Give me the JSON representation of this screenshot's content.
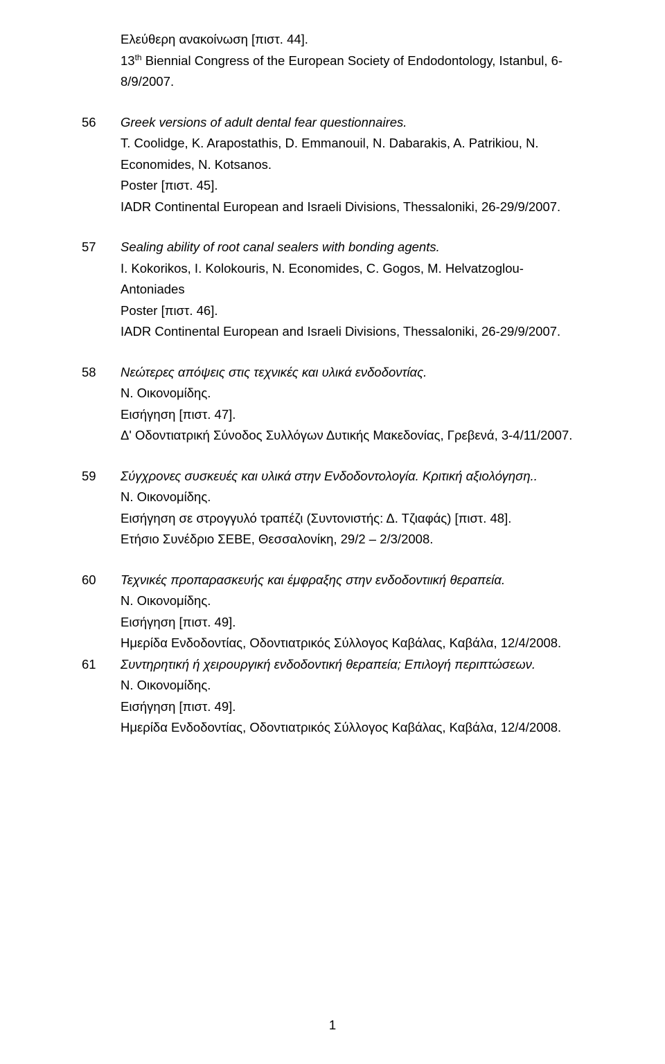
{
  "intro": {
    "l1": "Ελεύθερη ανακοίνωση [πιστ. 44].",
    "l2_pre": "13",
    "l2_sup": "th",
    "l2_post": " Biennial Congress of the European Society of Endodontology, Istanbul, 6-8/9/2007."
  },
  "e56": {
    "num": "56",
    "title": "Greek versions of adult dental fear questionnaires.",
    "authors": "T. Coolidge, K. Arapostathis, D. Emmanouil, N. Dabarakis, A. Patrikiou, N. Economides, N. Kotsanos.",
    "note": "Poster [πιστ. 45].",
    "venue": "IADR Continental European and Israeli Divisions, Thessaloniki, 26-29/9/2007."
  },
  "e57": {
    "num": "57",
    "title": "Sealing ability of root canal sealers with bonding agents.",
    "authors": "I. Kokorikos, I. Kolokouris, N. Economides, C. Gogos, M. Helvatzoglou-Antoniades",
    "note": "Poster [πιστ. 46].",
    "venue": "IADR Continental European and Israeli Divisions, Thessaloniki, 26-29/9/2007."
  },
  "e58": {
    "num": "58",
    "title": "Νεώτερες απόψεις στις τεχνικές και υλικά ενδοδοντίας.",
    "authors": "Ν. Οικονομίδης.",
    "note": "Εισήγηση [πιστ. 47].",
    "venue": "Δ' Οδοντιατρική Σύνοδος Συλλόγων Δυτικής Μακεδονίας, Γρεβενά, 3-4/11/2007."
  },
  "e59": {
    "num": "59",
    "title": "Σύγχρονες συσκευές και υλικά στην Ενδοδοντολογία. Κριτική αξιολόγηση..",
    "authors": "Ν. Οικονομίδης.",
    "note": "Εισήγηση σε στρογγυλό τραπέζι (Συντονιστής: Δ. Τζιαφάς) [πιστ. 48].",
    "venue": "Ετήσιο Συνέδριο ΣΕΒΕ, Θεσσαλονίκη, 29/2 – 2/3/2008."
  },
  "e60": {
    "num": "60",
    "title": "Τεχνικές προπαρασκευής και έμφραξης στην ενδοδοντιική θεραπεία.",
    "authors": "Ν. Οικονομίδης.",
    "note": "Εισήγηση [πιστ. 49].",
    "venue": "Ημερίδα Ενδοδοντίας, Οδοντιατρικός Σύλλογος Καβάλας, Καβάλα, 12/4/2008."
  },
  "e61": {
    "num": "61",
    "title": "Συντηρητική ή χειρουργική ενδοδοντική θεραπεία; Επιλογή περιπτώσεων.",
    "authors": "Ν. Οικονομίδης.",
    "note": "Εισήγηση [πιστ. 49].",
    "venue": "Ημερίδα Ενδοδοντίας, Οδοντιατρικός Σύλλογος Καβάλας, Καβάλα, 12/4/2008."
  },
  "pagenum": "1"
}
